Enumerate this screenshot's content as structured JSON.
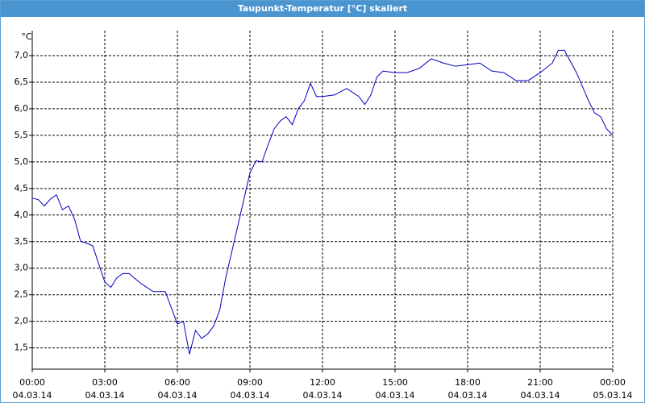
{
  "chart_data": {
    "type": "line",
    "title": "Taupunkt-Temperatur [°C] skaliert",
    "y_unit": "°C",
    "x": [
      0,
      0.25,
      0.5,
      0.75,
      1,
      1.25,
      1.5,
      1.75,
      2,
      2.25,
      2.5,
      3,
      3.25,
      3.5,
      3.75,
      4,
      4.5,
      5,
      5.5,
      6,
      6.25,
      6.5,
      6.75,
      7,
      7.25,
      7.5,
      7.75,
      8,
      8.5,
      9,
      9.25,
      9.5,
      9.75,
      10,
      10.25,
      10.5,
      10.75,
      11,
      11.25,
      11.5,
      11.75,
      12,
      12.5,
      13,
      13.5,
      13.75,
      14,
      14.25,
      14.5,
      15,
      15.5,
      16,
      16.5,
      17,
      17.5,
      18,
      18.5,
      19,
      19.5,
      20,
      20.5,
      21,
      21.5,
      21.75,
      22,
      22.5,
      23,
      23.25,
      23.5,
      23.75,
      24
    ],
    "series": [
      {
        "name": "Taupunkt",
        "color": "#0000c0",
        "values": [
          4.32,
          4.29,
          4.17,
          4.3,
          4.38,
          4.1,
          4.17,
          3.92,
          3.5,
          3.47,
          3.42,
          2.74,
          2.64,
          2.82,
          2.9,
          2.9,
          2.71,
          2.56,
          2.56,
          1.95,
          2.0,
          1.38,
          1.83,
          1.68,
          1.76,
          1.91,
          2.21,
          2.82,
          3.8,
          4.79,
          5.02,
          5.0,
          5.32,
          5.62,
          5.77,
          5.85,
          5.7,
          6.0,
          6.15,
          6.48,
          6.23,
          6.23,
          6.26,
          6.38,
          6.23,
          6.08,
          6.26,
          6.6,
          6.71,
          6.68,
          6.68,
          6.76,
          6.94,
          6.86,
          6.8,
          6.83,
          6.86,
          6.71,
          6.68,
          6.53,
          6.53,
          6.68,
          6.86,
          7.1,
          7.1,
          6.68,
          6.15,
          5.92,
          5.85,
          5.62,
          5.5
        ]
      }
    ],
    "xlim": [
      0,
      24
    ],
    "xticks": [
      {
        "value": 0,
        "label": "00:00"
      },
      {
        "value": 3,
        "label": "03:00"
      },
      {
        "value": 6,
        "label": "06:00"
      },
      {
        "value": 9,
        "label": "09:00"
      },
      {
        "value": 12,
        "label": "12:00"
      },
      {
        "value": 15,
        "label": "15:00"
      },
      {
        "value": 18,
        "label": "18:00"
      },
      {
        "value": 21,
        "label": "21:00"
      },
      {
        "value": 24,
        "label": "00:00"
      }
    ],
    "xtick_dates": [
      "04.03.14",
      "04.03.14",
      "04.03.14",
      "04.03.14",
      "04.03.14",
      "04.03.14",
      "04.03.14",
      "04.03.14",
      "05.03.14"
    ],
    "ylim": [
      1.1,
      7.47
    ],
    "yticks": [
      {
        "value": 1.5,
        "label": "1,5"
      },
      {
        "value": 2,
        "label": "2,0"
      },
      {
        "value": 2.5,
        "label": "2,5"
      },
      {
        "value": 3,
        "label": "3,0"
      },
      {
        "value": 3.5,
        "label": "3,5"
      },
      {
        "value": 4,
        "label": "4,0"
      },
      {
        "value": 4.5,
        "label": "4,5"
      },
      {
        "value": 5,
        "label": "5,0"
      },
      {
        "value": 5.5,
        "label": "5,5"
      },
      {
        "value": 6,
        "label": "6,0"
      },
      {
        "value": 6.5,
        "label": "6,5"
      },
      {
        "value": 7,
        "label": "7,0"
      }
    ],
    "grid": true
  }
}
